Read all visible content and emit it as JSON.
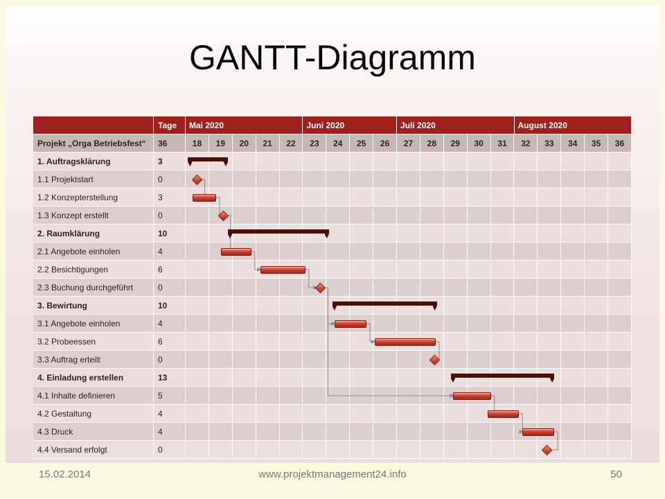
{
  "slide": {
    "title": "GANTT-Diagramm",
    "footer": {
      "date": "15.02.2014",
      "url": "www.projektmanagement24.info",
      "page": "50"
    }
  },
  "colors": {
    "header_red": "#9e201c",
    "week_row_bg": "#c6b7b5",
    "row_light": "#eadfde",
    "row_dark": "#dcd0ce",
    "summary_bar": "#4a0e06",
    "task_bar": "#c0392b",
    "task_bar_light": "#e98b7d",
    "task_bar_border": "#7e170d",
    "connector": "#8a8a8a",
    "grid_line": "#ffffff",
    "page_bg": "#fafae1",
    "footer_text": "#777777"
  },
  "chart_data": {
    "type": "gantt",
    "title": "GANTT-Diagramm",
    "columns": {
      "task_header": "Projekt „Orga Betriebsfest“",
      "duration_header": "Tage",
      "duration_total": "36"
    },
    "months": [
      {
        "label": "Mai 2020",
        "weeks": [
          18,
          19,
          20,
          21,
          22
        ]
      },
      {
        "label": "Juni 2020",
        "weeks": [
          23,
          24,
          25,
          26
        ]
      },
      {
        "label": "Juli 2020",
        "weeks": [
          27,
          28,
          29,
          30,
          31
        ]
      },
      {
        "label": "August 2020",
        "weeks": [
          32,
          33,
          34,
          35,
          36
        ]
      }
    ],
    "weeks": [
      18,
      19,
      20,
      21,
      22,
      23,
      24,
      25,
      26,
      27,
      28,
      29,
      30,
      31,
      32,
      33,
      34,
      35,
      36
    ],
    "axis_note": "bar positions are in calendar-week units, week 18 = chart origin",
    "tasks": [
      {
        "name": "1. Auftragsklärung",
        "days": "3",
        "type": "summary",
        "start": 18.1,
        "end": 19.8
      },
      {
        "name": "1.1 Projektstart",
        "days": "0",
        "type": "milestone",
        "at": 18.5
      },
      {
        "name": "1.2 Konzepterstellung",
        "days": "3",
        "type": "task",
        "start": 18.3,
        "end": 19.3
      },
      {
        "name": "1.3 Konzept erstellt",
        "days": "0",
        "type": "milestone",
        "at": 19.6
      },
      {
        "name": "2. Raumklärung",
        "days": "10",
        "type": "summary",
        "start": 19.8,
        "end": 24.1
      },
      {
        "name": "2.1 Angebote einholen",
        "days": "4",
        "type": "task",
        "start": 19.5,
        "end": 20.8
      },
      {
        "name": "2.2 Besichtigungen",
        "days": "6",
        "type": "task",
        "start": 21.2,
        "end": 23.1
      },
      {
        "name": "2.3 Buchung durchgeführt",
        "days": "0",
        "type": "milestone",
        "at": 23.75
      },
      {
        "name": "3. Bewirtung",
        "days": "10",
        "type": "summary",
        "start": 24.25,
        "end": 28.7
      },
      {
        "name": "3.1 Angebote einholen",
        "days": "4",
        "type": "task",
        "start": 24.35,
        "end": 25.7
      },
      {
        "name": "3.2 Probeessen",
        "days": "6",
        "type": "task",
        "start": 26.05,
        "end": 28.65
      },
      {
        "name": "3.3 Auftrag erteilt",
        "days": "0",
        "type": "milestone",
        "at": 28.6
      },
      {
        "name": "4. Einladung erstellen",
        "days": "13",
        "type": "summary",
        "start": 29.3,
        "end": 33.7
      },
      {
        "name": "4.1 Inhalte definieren",
        "days": "5",
        "type": "task",
        "start": 29.4,
        "end": 31.0
      },
      {
        "name": "4.2 Gestaltung",
        "days": "4",
        "type": "task",
        "start": 30.85,
        "end": 32.2
      },
      {
        "name": "4.3 Druck",
        "days": "4",
        "type": "task",
        "start": 32.35,
        "end": 33.7
      },
      {
        "name": "4.4 Versand erfolgt",
        "days": "0",
        "type": "milestone",
        "at": 33.4
      }
    ],
    "links": [
      [
        1,
        2
      ],
      [
        2,
        3
      ],
      [
        3,
        5
      ],
      [
        5,
        6
      ],
      [
        6,
        7
      ],
      [
        7,
        9
      ],
      [
        9,
        10
      ],
      [
        10,
        11
      ],
      [
        7,
        13
      ],
      [
        13,
        14
      ],
      [
        14,
        15
      ],
      [
        15,
        16
      ]
    ]
  }
}
